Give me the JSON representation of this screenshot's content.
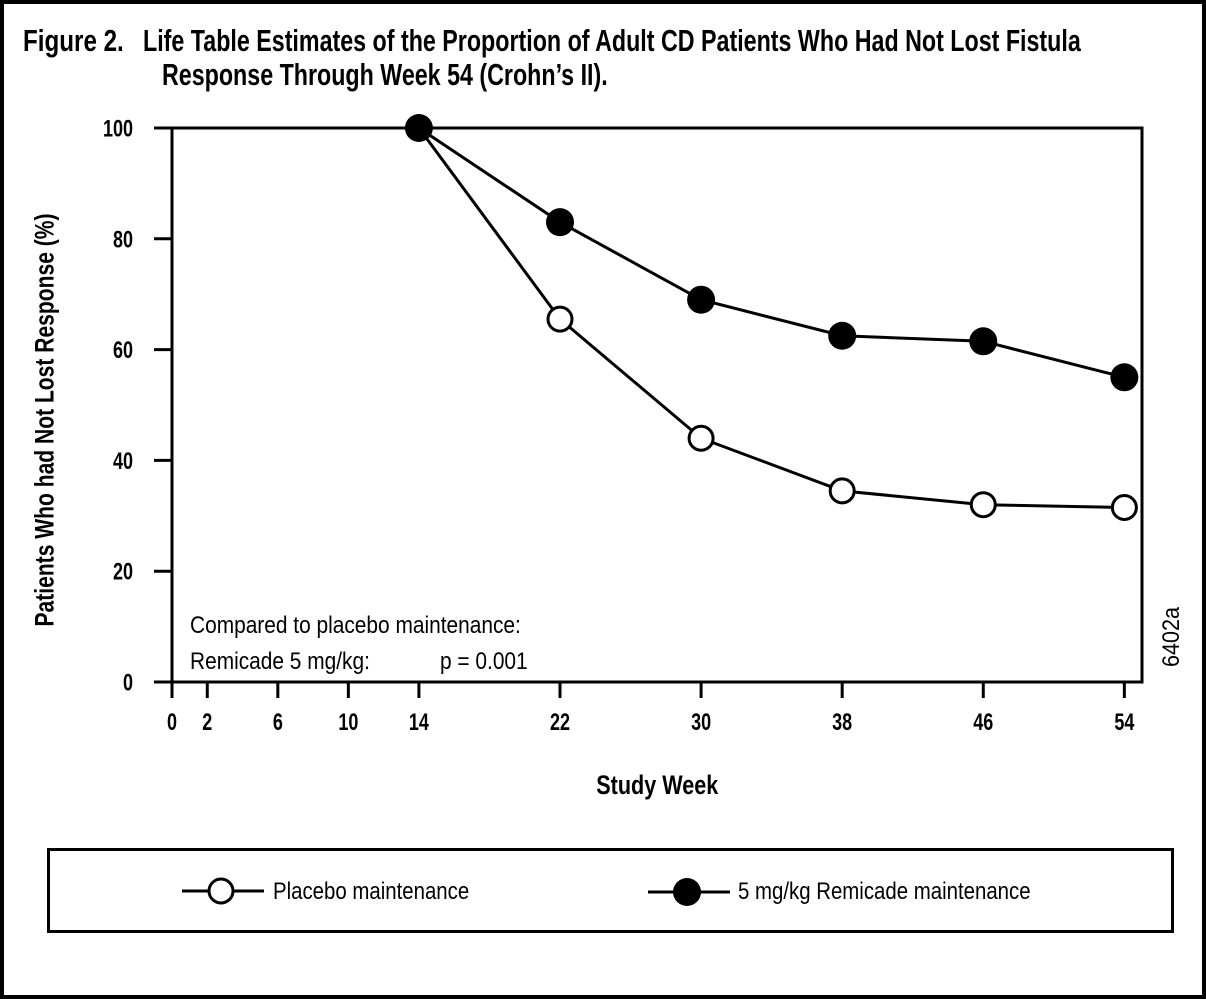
{
  "figure": {
    "label": "Figure 2.",
    "title_line1": "Life Table Estimates of the Proportion of Adult CD Patients Who Had Not Lost Fistula",
    "title_line2": "Response Through Week 54 (Crohn’s II)."
  },
  "side_code": "6402a",
  "annotation": {
    "line1": "Compared to placebo maintenance:",
    "line2_label": "Remicade 5 mg/kg:",
    "line2_value": "p = 0.001"
  },
  "legend": {
    "items": [
      {
        "label": "Placebo maintenance",
        "marker": "open-circle"
      },
      {
        "label": "5 mg/kg Remicade maintenance",
        "marker": "filled-circle"
      }
    ]
  },
  "colors": {
    "ink": "#000000",
    "background": "#ffffff"
  },
  "chart_data": {
    "type": "line",
    "title": "Life Table Estimates of the Proportion of Adult CD Patients Who Had Not Lost Fistula Response Through Week 54 (Crohn’s II).",
    "xlabel": "Study Week",
    "ylabel": "Patients Who had Not Lost Response (%)",
    "xlim": [
      0,
      55
    ],
    "ylim": [
      0,
      100
    ],
    "x_ticks": [
      0,
      2,
      6,
      10,
      14,
      22,
      30,
      38,
      46,
      54
    ],
    "y_ticks": [
      0,
      20,
      40,
      60,
      80,
      100
    ],
    "grid": false,
    "legend_position": "bottom-box",
    "x": [
      14,
      22,
      30,
      38,
      46,
      54
    ],
    "series": [
      {
        "name": "Placebo maintenance",
        "marker": "open-circle",
        "values": [
          100,
          65.5,
          44,
          34.5,
          32,
          31.5
        ]
      },
      {
        "name": "5 mg/kg Remicade maintenance",
        "marker": "filled-circle",
        "values": [
          100,
          83,
          69,
          62.5,
          61.5,
          55
        ]
      }
    ]
  }
}
